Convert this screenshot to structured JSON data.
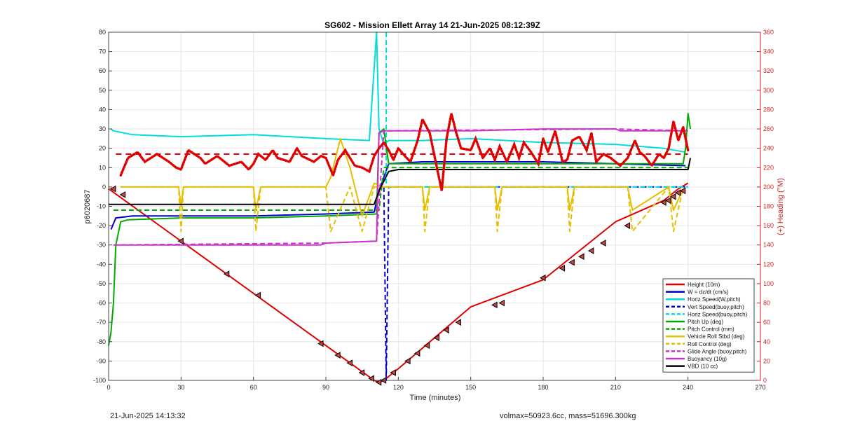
{
  "chart_data": {
    "type": "line",
    "title": "SG602 - Mission Ellett Array 14 21-Jun-2025 08:12:39Z",
    "xlabel": "Time (minutes)",
    "ylabel": "p6020687",
    "y2label": "(+) Heading (°M)",
    "xlim": [
      0,
      270
    ],
    "ylim": [
      -100,
      80
    ],
    "y2lim": [
      0,
      360
    ],
    "x_ticks": [
      0,
      30,
      60,
      90,
      120,
      150,
      180,
      210,
      240,
      270
    ],
    "y_ticks": [
      80,
      70,
      60,
      50,
      40,
      30,
      20,
      10,
      0,
      -10,
      -20,
      -30,
      -40,
      -50,
      -60,
      -70,
      -80,
      -90,
      -100
    ],
    "y2_ticks": [
      360,
      340,
      320,
      300,
      280,
      260,
      240,
      220,
      200,
      180,
      160,
      140,
      120,
      100,
      80,
      60,
      40,
      20,
      0
    ],
    "grid": true,
    "legend_position": "bottom-right",
    "series": [
      {
        "name": "Height (10m)",
        "color": "#e00000",
        "style": "solid",
        "axis": "left",
        "x": [
          0,
          30,
          60,
          90,
          110,
          112,
          114,
          120,
          150,
          180,
          210,
          230,
          236,
          240
        ],
        "y": [
          -1,
          -28,
          -55,
          -82,
          -100,
          -101,
          -100,
          -94,
          -62,
          -48,
          -18,
          -7,
          -1,
          2
        ]
      },
      {
        "name": "W = dz/dt (cm/s)",
        "color": "#0000cc",
        "style": "solid",
        "axis": "left",
        "x": [
          1,
          3,
          10,
          30,
          60,
          90,
          110,
          112,
          116,
          130,
          150,
          180,
          210,
          239
        ],
        "y": [
          -22,
          -16,
          -15,
          -15,
          -15,
          -14,
          -13,
          -2,
          12,
          13,
          13,
          13,
          12,
          11
        ]
      },
      {
        "name": "Horiz Speed(W,pitch)",
        "color": "#00dddd",
        "style": "solid",
        "axis": "left",
        "x": [
          1,
          2,
          10,
          30,
          60,
          90,
          108,
          111,
          112,
          114,
          116,
          130,
          150,
          180,
          210,
          230,
          239
        ],
        "y": [
          30,
          29,
          27,
          26,
          27,
          25,
          24,
          80,
          30,
          22,
          24,
          24,
          25,
          23,
          22,
          20,
          18
        ]
      },
      {
        "name": "Vert Speed(buoy,pitch)",
        "color": "#0000cc",
        "style": "dashed",
        "axis": "left",
        "x": [
          114,
          115,
          116,
          240
        ],
        "y": [
          0,
          -100,
          0,
          0
        ]
      },
      {
        "name": "Horiz Speed(buoy,pitch)",
        "color": "#00dddd",
        "style": "dashed",
        "axis": "left",
        "x": [
          115,
          115,
          116,
          240
        ],
        "y": [
          80,
          0,
          0,
          0
        ]
      },
      {
        "name": "Pitch Up (deg)",
        "color": "#00aa00",
        "style": "solid",
        "axis": "left",
        "x": [
          0,
          1,
          2,
          3,
          5,
          8,
          30,
          60,
          90,
          111,
          112,
          114,
          116,
          150,
          180,
          210,
          238,
          239,
          240,
          241
        ],
        "y": [
          -82,
          -75,
          -60,
          -30,
          -18,
          -17,
          -16,
          -16,
          -15,
          -14,
          28,
          30,
          12,
          12,
          12,
          12,
          12,
          20,
          38,
          30
        ]
      },
      {
        "name": "Pitch Control (mm)",
        "color": "#00aa00",
        "style": "dashed",
        "axis": "left",
        "x": [
          2,
          112,
          114,
          240
        ],
        "y": [
          -12,
          -12,
          10,
          10
        ]
      },
      {
        "name": "Vehicle Roll Stbd (deg)",
        "color": "#e6c000",
        "style": "solid",
        "axis": "left",
        "x": [
          5,
          20,
          29,
          30,
          31,
          60,
          61,
          63,
          90,
          92,
          96,
          100,
          105,
          110,
          113,
          130,
          131,
          133,
          160,
          161,
          163,
          190,
          191,
          193,
          215,
          217,
          232,
          234,
          238
        ],
        "y": [
          0,
          0,
          0,
          -10,
          0,
          0,
          -12,
          0,
          0,
          5,
          25,
          10,
          -15,
          2,
          0,
          0,
          -12,
          0,
          0,
          -12,
          0,
          0,
          -12,
          0,
          0,
          -12,
          0,
          -12,
          -1
        ]
      },
      {
        "name": "Roll Control (deg)",
        "color": "#e6c000",
        "style": "dashed",
        "axis": "left",
        "x": [
          5,
          20,
          29,
          30,
          31,
          60,
          61,
          63,
          90,
          92,
          100,
          105,
          110,
          113,
          130,
          131,
          133,
          160,
          161,
          163,
          190,
          191,
          193,
          215,
          217,
          232,
          234,
          238
        ],
        "y": [
          0,
          0,
          0,
          -23,
          0,
          0,
          -23,
          0,
          0,
          -23,
          0,
          -23,
          0,
          0,
          0,
          -23,
          0,
          0,
          -23,
          0,
          0,
          -23,
          0,
          0,
          -23,
          0,
          -23,
          0
        ]
      },
      {
        "name": "Glide Angle (buoy,pitch)",
        "color": "#cc33cc",
        "style": "dashed",
        "axis": "left",
        "x": [
          2,
          90,
          111,
          114,
          210,
          240
        ],
        "y": [
          -30,
          -29,
          -28,
          29,
          30,
          29
        ]
      },
      {
        "name": "Buoyancy (10g)",
        "color": "#cc33cc",
        "style": "solid",
        "axis": "left",
        "x": [
          2,
          30,
          60,
          88,
          90,
          111,
          112,
          114,
          130,
          150,
          180,
          210,
          212,
          240
        ],
        "y": [
          -30,
          -30,
          -30,
          -30,
          -29,
          -28,
          28,
          29,
          29,
          29,
          30,
          30,
          29,
          29
        ]
      },
      {
        "name": "VBD (10 cc)",
        "color": "#000000",
        "style": "solid",
        "axis": "left",
        "x": [
          0,
          2,
          10,
          30,
          60,
          90,
          110,
          112,
          116,
          120,
          150,
          180,
          210,
          240,
          241
        ],
        "y": [
          -9,
          -9,
          -9,
          -9,
          -9,
          -9,
          -9,
          -2,
          8,
          9,
          9,
          9,
          9,
          9,
          15
        ]
      }
    ],
    "heading": {
      "color": "#e00000",
      "style": "dotted",
      "axis": "right",
      "x": [
        5,
        8,
        12,
        15,
        20,
        25,
        28,
        30,
        33,
        38,
        40,
        45,
        50,
        55,
        58,
        60,
        62,
        65,
        68,
        70,
        75,
        78,
        80,
        85,
        88,
        90,
        93,
        95,
        98,
        100,
        102,
        105,
        108,
        110,
        112,
        114,
        116,
        118,
        120,
        122,
        125,
        128,
        130,
        133,
        136,
        138,
        140,
        142,
        144,
        146,
        150,
        152,
        155,
        158,
        160,
        162,
        165,
        168,
        170,
        172,
        175,
        178,
        180,
        182,
        185,
        188,
        190,
        192,
        195,
        198,
        200,
        202,
        205,
        208,
        210,
        212,
        215,
        218,
        220,
        222,
        225,
        228,
        230,
        232,
        234,
        236,
        238,
        240
      ],
      "y": [
        212,
        230,
        236,
        226,
        234,
        226,
        220,
        218,
        238,
        230,
        224,
        232,
        222,
        226,
        218,
        224,
        234,
        228,
        238,
        230,
        226,
        240,
        232,
        226,
        232,
        230,
        212,
        228,
        238,
        230,
        222,
        220,
        216,
        232,
        240,
        246,
        238,
        228,
        240,
        234,
        226,
        248,
        270,
        256,
        220,
        196,
        250,
        276,
        256,
        240,
        238,
        250,
        230,
        240,
        228,
        242,
        226,
        244,
        230,
        246,
        236,
        224,
        250,
        236,
        258,
        226,
        228,
        248,
        252,
        238,
        256,
        226,
        234,
        230,
        226,
        222,
        230,
        248,
        236,
        232,
        222,
        234,
        230,
        240,
        268,
        248,
        262,
        238
      ],
      "target_value": 234
    },
    "height_markers": {
      "x": [
        2,
        6,
        30,
        49,
        62,
        88,
        95,
        100,
        105,
        109,
        112,
        114,
        118,
        124,
        128,
        132,
        136,
        140,
        145,
        160,
        163,
        180,
        188,
        192,
        196,
        200,
        205,
        215,
        230,
        232,
        234,
        236,
        238
      ],
      "y": [
        -1,
        -4,
        -28,
        -45,
        -56,
        -81,
        -87,
        -91,
        -96,
        -99,
        -101,
        -100,
        -96,
        -90,
        -86,
        -82,
        -78,
        -74,
        -70,
        -61,
        -60,
        -47,
        -42,
        -39,
        -36,
        -33,
        -29,
        -20,
        -8,
        -7,
        -5,
        -3,
        -2
      ]
    }
  },
  "footer": {
    "timestamp": "21-Jun-2025 14:13:32",
    "stats": "volmax=50923.6cc, mass=51696.300kg"
  }
}
